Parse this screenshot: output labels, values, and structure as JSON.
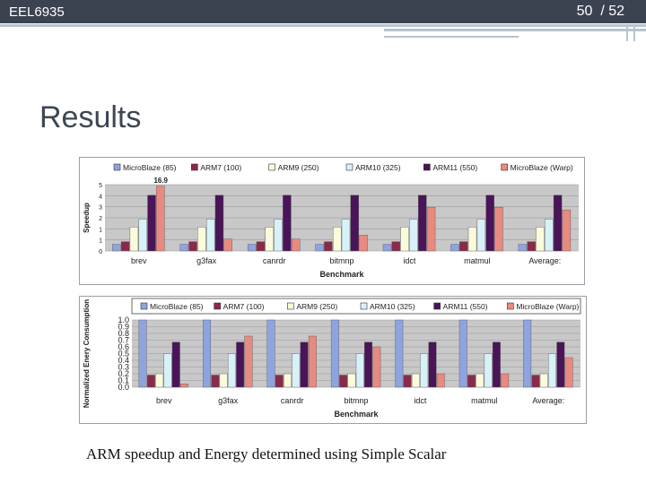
{
  "header": {
    "course": "EEL6935",
    "page": "50",
    "total": "/ 52"
  },
  "slide": {
    "title": "Results",
    "caption": "ARM speedup and Energy determined using Simple Scalar"
  },
  "colors": {
    "header_bg": "#3b4250",
    "plot_bg": "#c8c8c8",
    "series": [
      "#8fa3e0",
      "#8a2a4a",
      "#fbfbdc",
      "#d8f0f8",
      "#4a1458",
      "#e88a80"
    ]
  },
  "chart_data": [
    {
      "type": "bar",
      "title": "",
      "xlabel": "Benchmark",
      "ylabel": "Speedup",
      "ylim": [
        0,
        5
      ],
      "yticks": [
        "0",
        "1",
        "1",
        "2",
        "3",
        "4",
        "5"
      ],
      "categories": [
        "brev",
        "g3fax",
        "canrdr",
        "bitmnp",
        "idct",
        "matmul",
        "Average:"
      ],
      "legend": [
        "MicroBlaze (85)",
        "ARM7 (100)",
        "ARM9 (250)",
        "ARM10 (325)",
        "ARM11 (550)",
        "MicroBlaze (Warp)"
      ],
      "legend_position": "top",
      "grid": true,
      "annotations": [
        {
          "text": "16.9",
          "category": "brev",
          "series": "MicroBlaze (Warp)"
        }
      ],
      "series": [
        {
          "name": "MicroBlaze (85)",
          "values": [
            0.5,
            0.5,
            0.5,
            0.5,
            0.5,
            0.5,
            0.5
          ]
        },
        {
          "name": "ARM7 (100)",
          "values": [
            0.7,
            0.7,
            0.7,
            0.7,
            0.7,
            0.7,
            0.7
          ]
        },
        {
          "name": "ARM9 (250)",
          "values": [
            1.8,
            1.8,
            1.8,
            1.8,
            1.8,
            1.8,
            1.8
          ]
        },
        {
          "name": "ARM10 (325)",
          "values": [
            2.4,
            2.4,
            2.4,
            2.4,
            2.4,
            2.4,
            2.4
          ]
        },
        {
          "name": "ARM11 (550)",
          "values": [
            4.2,
            4.2,
            4.2,
            4.2,
            4.2,
            4.2,
            4.2
          ]
        },
        {
          "name": "MicroBlaze (Warp)",
          "values": [
            4.9,
            0.9,
            0.9,
            1.2,
            3.3,
            3.3,
            3.1
          ]
        }
      ]
    },
    {
      "type": "bar",
      "title": "",
      "xlabel": "Benchmark",
      "ylabel": "Normalized Enery Consumption",
      "ylim": [
        0,
        1.0
      ],
      "yticks": [
        "0.0",
        "0.1",
        "0.2",
        "0.3",
        "0.4",
        "0.5",
        "0.6",
        "0.7",
        "0.8",
        "0.9",
        "1.0"
      ],
      "categories": [
        "brev",
        "g3fax",
        "canrdr",
        "bitmnp",
        "idct",
        "matmul",
        "Average:"
      ],
      "legend": [
        "MicroBlaze (85)",
        "ARM7 (100)",
        "ARM9 (250)",
        "ARM10 (325)",
        "ARM11 (550)",
        "MicroBlaze (Warp)"
      ],
      "legend_position": "top",
      "grid": true,
      "series": [
        {
          "name": "MicroBlaze (85)",
          "values": [
            1.0,
            1.0,
            1.0,
            1.0,
            1.0,
            1.0,
            1.0
          ]
        },
        {
          "name": "ARM7 (100)",
          "values": [
            0.18,
            0.18,
            0.18,
            0.18,
            0.18,
            0.18,
            0.18
          ]
        },
        {
          "name": "ARM9 (250)",
          "values": [
            0.2,
            0.2,
            0.2,
            0.2,
            0.2,
            0.2,
            0.2
          ]
        },
        {
          "name": "ARM10 (325)",
          "values": [
            0.5,
            0.5,
            0.5,
            0.5,
            0.5,
            0.5,
            0.5
          ]
        },
        {
          "name": "ARM11 (550)",
          "values": [
            0.67,
            0.67,
            0.67,
            0.67,
            0.67,
            0.67,
            0.67
          ]
        },
        {
          "name": "MicroBlaze (Warp)",
          "values": [
            0.05,
            0.76,
            0.76,
            0.6,
            0.2,
            0.2,
            0.44
          ]
        }
      ]
    }
  ]
}
